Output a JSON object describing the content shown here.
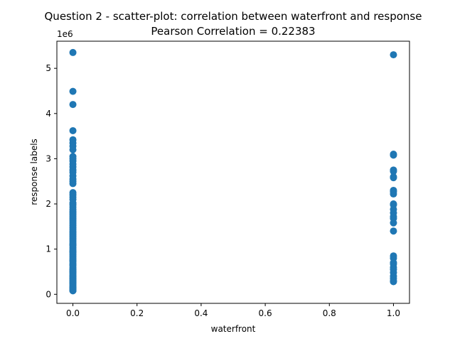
{
  "chart_data": {
    "type": "scatter",
    "title": "Question 2 - scatter-plot: correlation between waterfront and response",
    "subtitle": "Pearson Correlation = 0.22383",
    "xlabel": "waterfront",
    "ylabel": "response labels",
    "y_offset_label": "1e6",
    "xlim": [
      -0.05,
      1.05
    ],
    "ylim": [
      -0.2,
      5.6
    ],
    "x_ticks": [
      0.0,
      0.2,
      0.4,
      0.6,
      0.8,
      1.0
    ],
    "x_tick_labels": [
      "0.0",
      "0.2",
      "0.4",
      "0.6",
      "0.8",
      "1.0"
    ],
    "y_ticks": [
      0,
      1,
      2,
      3,
      4,
      5
    ],
    "y_tick_labels": [
      "0",
      "1",
      "2",
      "3",
      "4",
      "5"
    ],
    "grid": false,
    "marker_color": "#1f77b4",
    "series": [
      {
        "x": [
          0,
          0,
          0,
          0,
          0,
          0,
          0,
          0,
          0,
          0,
          0,
          0,
          0,
          0,
          0,
          0,
          0,
          0,
          0,
          0,
          0,
          0,
          0,
          0,
          0,
          0,
          0,
          0,
          0,
          0,
          0,
          0,
          0,
          0,
          0,
          0,
          0,
          0,
          0,
          0,
          0,
          0,
          0,
          0,
          0,
          0,
          0,
          0,
          0,
          0,
          0,
          0,
          0,
          0,
          0,
          0,
          0,
          0,
          0,
          0,
          0,
          0,
          0,
          0,
          0,
          0,
          0,
          0,
          0,
          0,
          0,
          0,
          0,
          0,
          0,
          0,
          0,
          0,
          0,
          0,
          0,
          0,
          0,
          0,
          0,
          0,
          0,
          0,
          0,
          0,
          1,
          1,
          1,
          1,
          1,
          1,
          1,
          1,
          1,
          1,
          1,
          1,
          1,
          1,
          1,
          1,
          1,
          1,
          1,
          1,
          1,
          1,
          1,
          1,
          1,
          1,
          1,
          1,
          1
        ],
        "y": [
          5.35,
          4.49,
          4.2,
          3.62,
          3.42,
          3.35,
          3.28,
          3.2,
          3.05,
          3.0,
          2.95,
          2.88,
          2.82,
          2.75,
          2.7,
          2.62,
          2.55,
          2.5,
          2.45,
          2.25,
          2.2,
          2.15,
          2.1,
          2.02,
          1.98,
          1.93,
          1.88,
          1.84,
          1.8,
          1.76,
          1.72,
          1.68,
          1.64,
          1.6,
          1.56,
          1.52,
          1.48,
          1.44,
          1.4,
          1.36,
          1.32,
          1.28,
          1.24,
          1.2,
          1.16,
          1.12,
          1.08,
          1.04,
          1.0,
          0.96,
          0.92,
          0.88,
          0.84,
          0.8,
          0.76,
          0.72,
          0.68,
          0.64,
          0.6,
          0.56,
          0.52,
          0.48,
          0.45,
          0.42,
          0.39,
          0.36,
          0.33,
          0.3,
          0.27,
          0.24,
          0.21,
          0.18,
          0.16,
          0.14,
          0.12,
          0.1,
          0.09,
          0.08,
          0.08,
          0.15,
          0.25,
          0.35,
          0.55,
          0.65,
          0.75,
          0.95,
          1.1,
          0.5,
          0.4,
          0.3,
          5.3,
          3.1,
          3.08,
          2.75,
          2.72,
          2.6,
          2.58,
          2.3,
          2.27,
          2.22,
          2.0,
          1.98,
          1.88,
          1.8,
          1.72,
          1.68,
          1.58,
          1.4,
          0.85,
          0.8,
          0.7,
          0.67,
          0.6,
          0.55,
          0.48,
          0.4,
          0.35,
          0.3,
          0.28
        ]
      }
    ]
  }
}
